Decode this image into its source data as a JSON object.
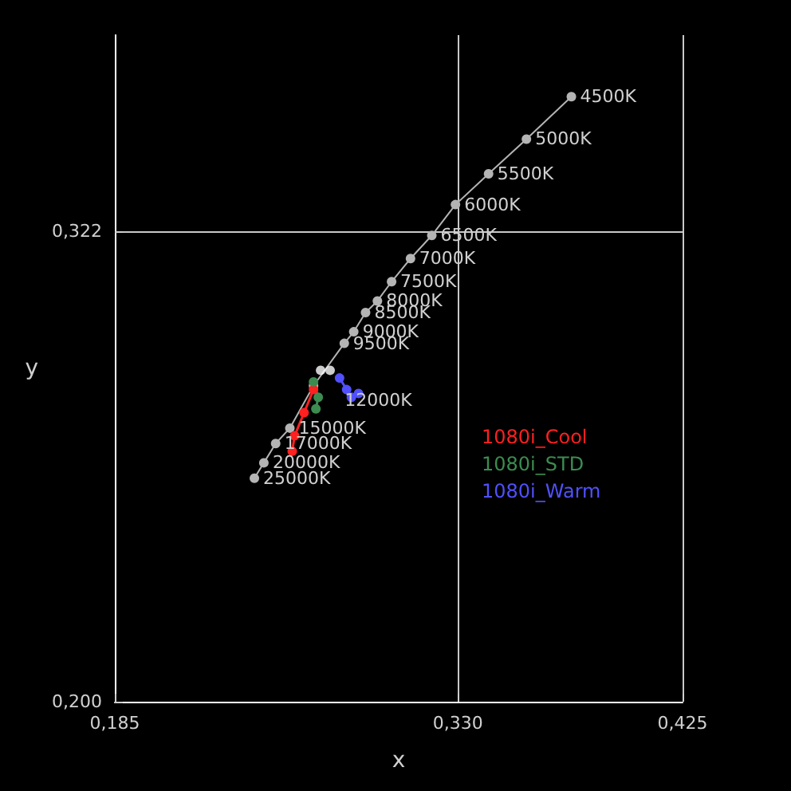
{
  "chart_data": {
    "type": "line",
    "xlabel": "x",
    "ylabel": "y",
    "xlim": [
      0.185,
      0.425
    ],
    "xticks": [
      {
        "value": 0.185,
        "label": "0,185"
      },
      {
        "value": 0.33,
        "label": "0,330"
      },
      {
        "value": 0.425,
        "label": "0,425"
      }
    ],
    "ylim": [
      0.2,
      0.373
    ],
    "yticks": [
      {
        "value": 0.2,
        "label": "0,200"
      },
      {
        "value": 0.322,
        "label": "0,322"
      }
    ],
    "grid": true,
    "legend": "right",
    "marker": "circle",
    "line_style": "solid",
    "series": [
      {
        "color": "#b4b4b4",
        "x": [
          0.378,
          0.359,
          0.343,
          0.329,
          0.319,
          0.31,
          0.302,
          0.296,
          0.291,
          0.286,
          0.282,
          0.269,
          0.259,
          0.253,
          0.248,
          0.244
        ],
        "values": [
          0.357,
          0.346,
          0.337,
          0.329,
          0.321,
          0.315,
          0.309,
          0.304,
          0.301,
          0.296,
          0.293,
          0.282,
          0.271,
          0.267,
          0.262,
          0.258
        ]
      },
      {
        "type": "scatter",
        "color": "#ffffff",
        "x": [
          0.276,
          0.272
        ],
        "values": [
          0.286,
          0.286
        ]
      },
      {
        "name": "1080i_Cool",
        "color": "#ff2020",
        "x": [
          0.269,
          0.265,
          0.261,
          0.26
        ],
        "values": [
          0.281,
          0.275,
          0.269,
          0.265
        ]
      },
      {
        "name": "1080i_STD",
        "color": "#3c8c50",
        "x": [
          0.269,
          0.271,
          0.27
        ],
        "values": [
          0.283,
          0.279,
          0.276
        ]
      },
      {
        "name": "1080i_Warm",
        "color": "#5050ff",
        "x": [
          0.28,
          0.283,
          0.285,
          0.288
        ],
        "values": [
          0.284,
          0.281,
          0.279,
          0.28
        ]
      }
    ],
    "annotations": [
      {
        "text": "4500K",
        "x": 0.378,
        "y": 0.357
      },
      {
        "text": "5000K",
        "x": 0.359,
        "y": 0.346
      },
      {
        "text": "5500K",
        "x": 0.343,
        "y": 0.337
      },
      {
        "text": "6000K",
        "x": 0.329,
        "y": 0.329
      },
      {
        "text": "6500K",
        "x": 0.319,
        "y": 0.321
      },
      {
        "text": "7000K",
        "x": 0.31,
        "y": 0.315
      },
      {
        "text": "7500K",
        "x": 0.302,
        "y": 0.309
      },
      {
        "text": "8000K",
        "x": 0.296,
        "y": 0.304
      },
      {
        "text": "8500K",
        "x": 0.291,
        "y": 0.301
      },
      {
        "text": "9000K",
        "x": 0.286,
        "y": 0.296
      },
      {
        "text": "9500K",
        "x": 0.282,
        "y": 0.293
      },
      {
        "text": "12000K",
        "x": 0.269,
        "y": 0.282
      },
      {
        "text": "15000K",
        "x": 0.259,
        "y": 0.271
      },
      {
        "text": "17000K",
        "x": 0.253,
        "y": 0.267
      },
      {
        "text": "20000K",
        "x": 0.248,
        "y": 0.262
      },
      {
        "text": "25000K",
        "x": 0.244,
        "y": 0.258
      }
    ]
  }
}
